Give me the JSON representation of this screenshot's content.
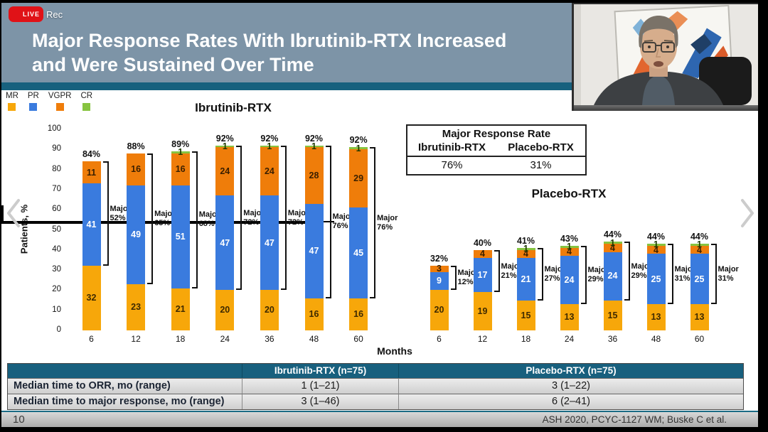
{
  "frame": {
    "rec_badge": "LIVE",
    "rec_label": "Rec",
    "page_number": "10",
    "citation": "ASH 2020, PCYC-1127 WM; Buske C et al.",
    "icons": {
      "prev": "chevron-left",
      "next": "chevron-right"
    }
  },
  "header": {
    "title_line1": "Major Response Rates With Ibrutinib-RTX Increased",
    "title_line2": "and Were Sustained Over Time"
  },
  "legend": {
    "items": [
      {
        "label": "MR",
        "color": "#F7A70A"
      },
      {
        "label": "PR",
        "color": "#3A7BDE"
      },
      {
        "label": "VGPR",
        "color": "#EF7D0A"
      },
      {
        "label": "CR",
        "color": "#87C440"
      }
    ]
  },
  "summary_table": {
    "title": "Major Response Rate",
    "columns": [
      "Ibrutinib-RTX",
      "Placebo-RTX"
    ],
    "values": [
      "76%",
      "31%"
    ]
  },
  "chart_data": {
    "type": "bar",
    "stacked": true,
    "ylabel": "Patients, %",
    "xlabel": "Months",
    "ylim": [
      0,
      100
    ],
    "yticks": [
      0,
      10,
      20,
      30,
      40,
      50,
      60,
      70,
      80,
      90,
      100
    ],
    "major_word": "Major",
    "series_order": [
      "MR",
      "PR",
      "VGPR",
      "CR"
    ],
    "groups": [
      {
        "title": "Ibrutinib-RTX",
        "categories": [
          6,
          12,
          18,
          24,
          36,
          48,
          60
        ],
        "bars": [
          {
            "month": 6,
            "MR": 32,
            "PR": 41,
            "VGPR": 11,
            "CR": 0,
            "total": "84%",
            "major": "52%"
          },
          {
            "month": 12,
            "MR": 23,
            "PR": 49,
            "VGPR": 16,
            "CR": 0,
            "total": "88%",
            "major": "65%"
          },
          {
            "month": 18,
            "MR": 21,
            "PR": 51,
            "VGPR": 16,
            "CR": 1,
            "total": "89%",
            "major": "68%"
          },
          {
            "month": 24,
            "MR": 20,
            "PR": 47,
            "VGPR": 24,
            "CR": 1,
            "total": "92%",
            "major": "72%"
          },
          {
            "month": 36,
            "MR": 20,
            "PR": 47,
            "VGPR": 24,
            "CR": 1,
            "total": "92%",
            "major": "72%"
          },
          {
            "month": 48,
            "MR": 16,
            "PR": 47,
            "VGPR": 28,
            "CR": 1,
            "total": "92%",
            "major": "76%"
          },
          {
            "month": 60,
            "MR": 16,
            "PR": 45,
            "VGPR": 29,
            "CR": 1,
            "total": "92%",
            "major": "76%"
          }
        ]
      },
      {
        "title": "Placebo-RTX",
        "categories": [
          6,
          12,
          18,
          24,
          36,
          48,
          60
        ],
        "bars": [
          {
            "month": 6,
            "MR": 20,
            "PR": 9,
            "VGPR": 3,
            "CR": 0,
            "total": "32%",
            "major": "12%"
          },
          {
            "month": 12,
            "MR": 19,
            "PR": 17,
            "VGPR": 4,
            "CR": 0,
            "total": "40%",
            "major": "21%"
          },
          {
            "month": 18,
            "MR": 15,
            "PR": 21,
            "VGPR": 4,
            "CR": 1,
            "total": "41%",
            "major": "27%"
          },
          {
            "month": 24,
            "MR": 13,
            "PR": 24,
            "VGPR": 4,
            "CR": 1,
            "total": "43%",
            "major": "29%"
          },
          {
            "month": 36,
            "MR": 15,
            "PR": 24,
            "VGPR": 4,
            "CR": 1,
            "total": "44%",
            "major": "29%"
          },
          {
            "month": 48,
            "MR": 13,
            "PR": 25,
            "VGPR": 4,
            "CR": 1,
            "total": "44%",
            "major": "31%"
          },
          {
            "month": 60,
            "MR": 13,
            "PR": 25,
            "VGPR": 4,
            "CR": 1,
            "total": "44%",
            "major": "31%"
          }
        ]
      }
    ]
  },
  "detail_table": {
    "header": [
      "",
      "Ibrutinib-RTX (n=75)",
      "Placebo-RTX (n=75)"
    ],
    "rows": [
      [
        "Median time to ORR, mo (range)",
        "1 (1–21)",
        "3 (1–22)"
      ],
      [
        "Median time to major response, mo (range)",
        "3 (1–46)",
        "6 (2–41)"
      ]
    ]
  }
}
